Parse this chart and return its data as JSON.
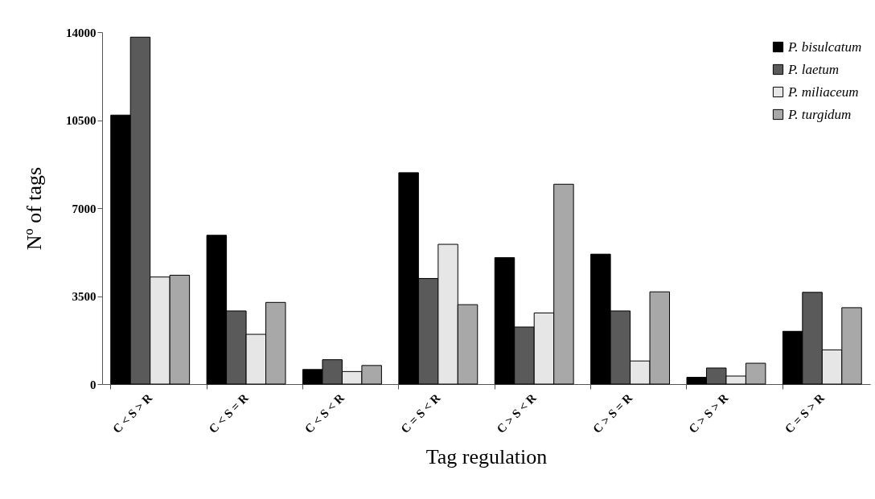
{
  "chart_data": {
    "type": "bar",
    "xlabel": "Tag regulation",
    "ylabel": "Nº of tags",
    "categories": [
      "C < S > R",
      "C < S = R",
      "C < S < R",
      "C = S < R",
      "C > S < R",
      "C > S = R",
      "C > S > R",
      "C = S > R"
    ],
    "series": [
      {
        "name": "P. bisulcatum",
        "color": "#000000",
        "values": [
          10700,
          5920,
          580,
          8410,
          5030,
          5170,
          270,
          2100
        ]
      },
      {
        "name": "P. laetum",
        "color": "#5a5a5a",
        "values": [
          13800,
          2910,
          970,
          4200,
          2270,
          2910,
          640,
          3650
        ]
      },
      {
        "name": "P. miliaceum",
        "color": "#e6e6e6",
        "values": [
          4260,
          1980,
          500,
          5560,
          2830,
          920,
          320,
          1360
        ]
      },
      {
        "name": "P. turgidum",
        "color": "#a8a8a8",
        "values": [
          4330,
          3250,
          740,
          3160,
          7950,
          3670,
          830,
          3040
        ]
      }
    ],
    "ylim": [
      0,
      14000
    ],
    "yticks": [
      0,
      3500,
      7000,
      10500,
      14000
    ],
    "grid": false,
    "legend": "top right"
  }
}
